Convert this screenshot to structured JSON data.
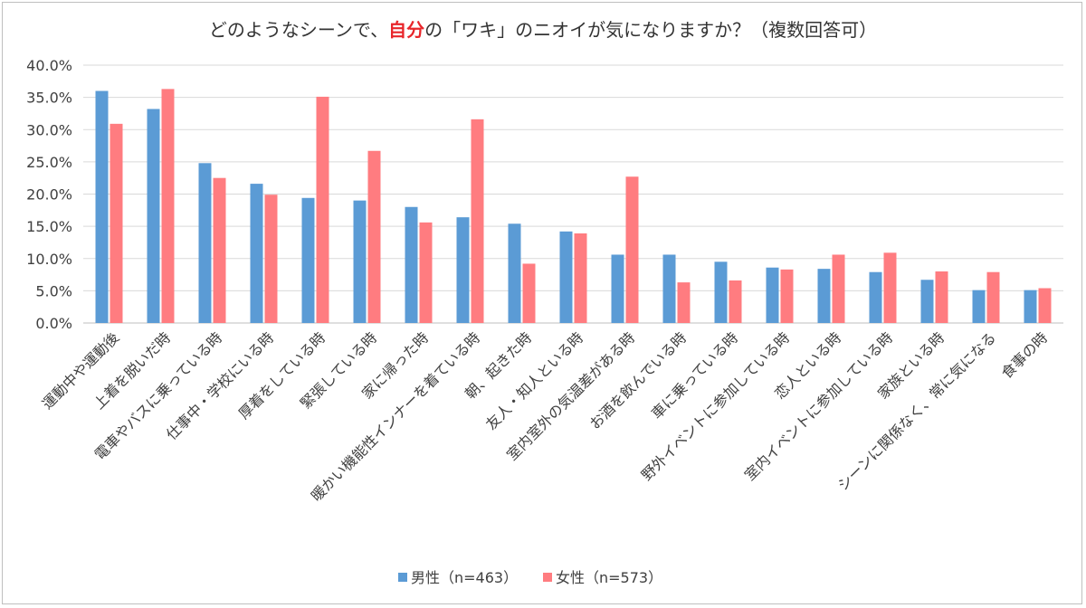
{
  "chart_data": {
    "type": "bar",
    "title": {
      "prefix": "どのようなシーンで、",
      "emphasis": "自分",
      "suffix": "の「ワキ」のニオイが気になりますか？（複数回答可）"
    },
    "xlabel": "",
    "ylabel": "",
    "ylim": [
      0,
      40
    ],
    "y_ticks": [
      "0.0%",
      "5.0%",
      "10.0%",
      "15.0%",
      "20.0%",
      "25.0%",
      "30.0%",
      "35.0%",
      "40.0%"
    ],
    "grid": true,
    "legend_position": "bottom",
    "categories": [
      "運動中や運動後",
      "上着を脱いだ時",
      "電車やバスに乗っている時",
      "仕事中・学校にいる時",
      "厚着をしている時",
      "緊張している時",
      "家に帰った時",
      "暖かい機能性インナーを着ている時",
      "朝、起きた時",
      "友人・知人といる時",
      "室内室外の気温差がある時",
      "お酒を飲んでいる時",
      "車に乗っている時",
      "野外イベントに参加している時",
      "恋人といる時",
      "室内イベントに参加している時",
      "家族といる時",
      "シーンに関係なく、常に気になる",
      "食事の時"
    ],
    "series": [
      {
        "name": "男性（n=463）",
        "color": "#5b9bd5",
        "values": [
          36.0,
          33.2,
          24.8,
          21.6,
          19.4,
          19.0,
          18.0,
          16.4,
          15.4,
          14.2,
          10.6,
          10.6,
          9.5,
          8.6,
          8.4,
          7.9,
          6.7,
          5.1,
          5.1
        ]
      },
      {
        "name": "女性（n=573）",
        "color": "#ff7c80",
        "values": [
          30.9,
          36.3,
          22.5,
          19.9,
          35.1,
          26.7,
          15.6,
          31.6,
          9.2,
          13.9,
          22.7,
          6.3,
          6.6,
          8.3,
          10.6,
          10.9,
          8.0,
          7.9,
          5.4
        ]
      }
    ]
  }
}
